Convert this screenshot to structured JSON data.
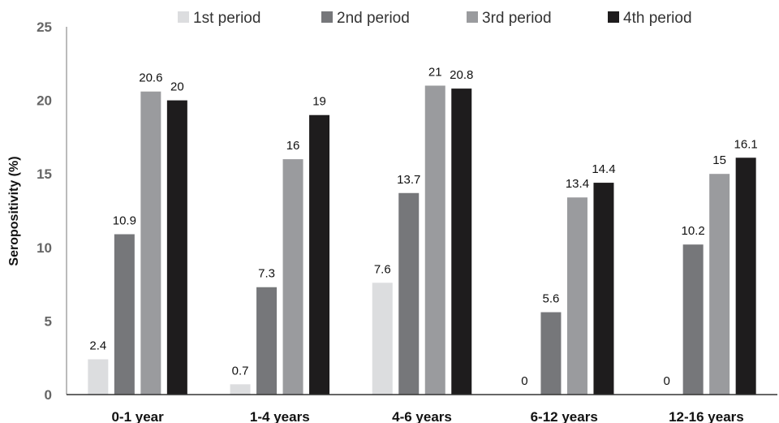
{
  "chart_data": {
    "type": "bar",
    "ylabel": "Seropositivity (%)",
    "ylim": [
      0,
      25
    ],
    "yticks": [
      0,
      5,
      10,
      15,
      20,
      25
    ],
    "grid": false,
    "legend_position": "top",
    "categories": [
      "0-1 year",
      "1-4 years",
      "4-6 years",
      "6-12 years",
      "12-16 years"
    ],
    "series": [
      {
        "name": "1st period",
        "color": "#dcdddf",
        "values": [
          2.4,
          0.7,
          7.6,
          0,
          0
        ],
        "labels": [
          "2.4",
          "0.7",
          "7.6",
          "0",
          "0"
        ]
      },
      {
        "name": "2nd period",
        "color": "#76777a",
        "values": [
          10.9,
          7.3,
          13.7,
          5.6,
          10.2
        ],
        "labels": [
          "10.9",
          "7.3",
          "13.7",
          "5.6",
          "10.2"
        ]
      },
      {
        "name": "3rd period",
        "color": "#9a9b9e",
        "values": [
          20.6,
          16,
          21,
          13.4,
          15
        ],
        "labels": [
          "20.6",
          "16",
          "21",
          "13.4",
          "15"
        ]
      },
      {
        "name": "4th period",
        "color": "#1e1c1d",
        "values": [
          20,
          19,
          20.8,
          14.4,
          16.1
        ],
        "labels": [
          "20",
          "19",
          "20.8",
          "14.4",
          "16.1"
        ]
      }
    ]
  }
}
